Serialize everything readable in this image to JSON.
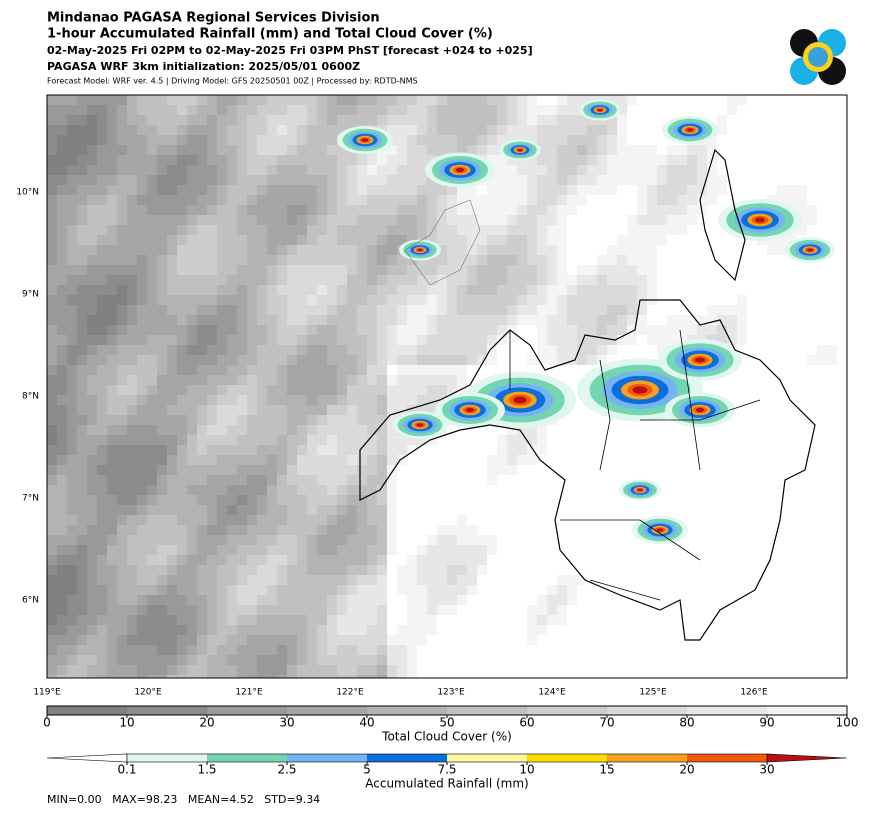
{
  "header": {
    "title": "Mindanao PAGASA Regional Services Division",
    "subtitle": "1-hour Accumulated Rainfall (mm) and Total Cloud Cover (%)",
    "period": "02-May-2025 Fri 02PM to 02-May-2025 Fri 03PM PhST [forecast +024 to +025]",
    "init": "PAGASA WRF 3km initialization: 2025/05/01 0600Z",
    "model": "Forecast Model: WRF ver. 4.5 | Driving Model: GFS 20250501 00Z | Processed by: RDTD-NMS"
  },
  "map": {
    "lon_labels": [
      "119°E",
      "120°E",
      "121°E",
      "122°E",
      "123°E",
      "124°E",
      "125°E",
      "126°E"
    ],
    "lat_labels": [
      "10°N",
      "9°N",
      "8°N",
      "7°N",
      "6°N"
    ]
  },
  "cloud_colorbar": {
    "label": "Total Cloud Cover (%)",
    "ticks": [
      "0",
      "10",
      "20",
      "30",
      "40",
      "50",
      "60",
      "70",
      "80",
      "90",
      "100"
    ],
    "colors": [
      "#808080",
      "#8c8c8c",
      "#999999",
      "#a6a6a6",
      "#b3b3b3",
      "#c0c0c0",
      "#cdcdcd",
      "#dadada",
      "#e7e7e7",
      "#f4f4f4"
    ]
  },
  "rain_colorbar": {
    "label": "Accumulated Rainfall (mm)",
    "ticks": [
      "0.1",
      "1.5",
      "2.5",
      "5",
      "7.5",
      "10",
      "15",
      "20",
      "30"
    ],
    "colors": [
      "#ffffff",
      "#dff7ee",
      "#74d6b0",
      "#74b4f2",
      "#0a6fdc",
      "#fff6a0",
      "#ffdc00",
      "#f7a21c",
      "#f25a0c",
      "#b81010"
    ]
  },
  "stats": "MIN=0.00   MAX=98.23   MEAN=4.52   STD=9.34"
}
